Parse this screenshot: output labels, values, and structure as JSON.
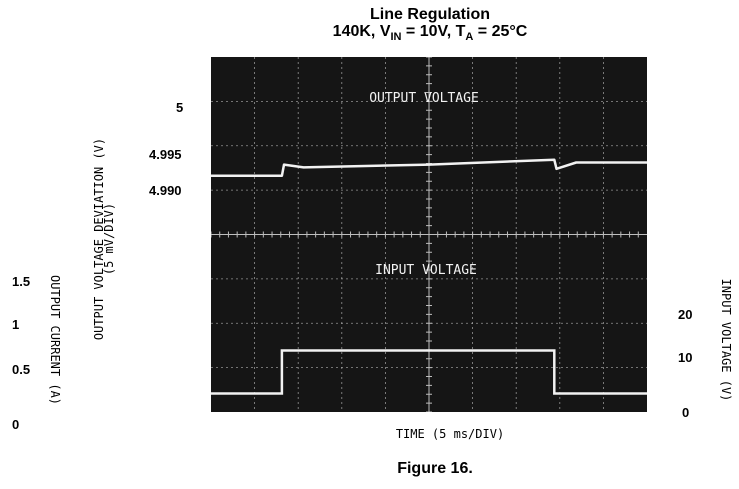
{
  "chart_data": {
    "type": "line",
    "title_line1": "Line Regulation",
    "title_line2_parts": {
      "prefix": "140K, V",
      "vin_sub": "IN",
      "mid": " = 10V, T",
      "ta_sub": "A",
      "suffix": " = 25°C"
    },
    "figure_caption": "Figure 16.",
    "xlabel": "TIME (5 ms/DIV)",
    "left_axis": {
      "label": "OUTPUT VOLTAGE DEVIATION (V)",
      "sublabel": "(5 mV/DIV)",
      "ticks": [
        "5",
        "4.995",
        "4.990"
      ]
    },
    "far_left_axis": {
      "label": "OUTPUT CURRENT (A)",
      "ticks": [
        "1.5",
        "1",
        "0.5",
        "0"
      ]
    },
    "right_axis": {
      "label": "INPUT VOLTAGE (V)",
      "ticks": [
        "20",
        "10",
        "0"
      ]
    },
    "trace_labels": {
      "output": "OUTPUT VOLTAGE",
      "input": "INPUT VOLTAGE"
    },
    "grid": true,
    "time_ms": [
      0,
      6.5,
      6.5,
      31.5,
      31.5,
      40
    ],
    "series": [
      {
        "name": "OUTPUT VOLTAGE",
        "unit": "V",
        "points": [
          [
            0,
            4.9906
          ],
          [
            6.5,
            4.9906
          ],
          [
            6.7,
            4.9922
          ],
          [
            8.5,
            4.9918
          ],
          [
            20,
            4.9922
          ],
          [
            31.5,
            4.9929
          ],
          [
            31.7,
            4.9916
          ],
          [
            33.5,
            4.9925
          ],
          [
            40,
            4.9925
          ]
        ]
      },
      {
        "name": "INPUT VOLTAGE",
        "unit": "V",
        "points": [
          [
            0,
            5
          ],
          [
            6.5,
            5
          ],
          [
            6.5,
            15
          ],
          [
            31.5,
            15
          ],
          [
            31.5,
            5
          ],
          [
            40,
            5
          ]
        ]
      }
    ]
  },
  "colors": {
    "screen": "#151515",
    "grid": "#bdbdbd",
    "trace": "#f2f2f2",
    "text": "#000000"
  }
}
